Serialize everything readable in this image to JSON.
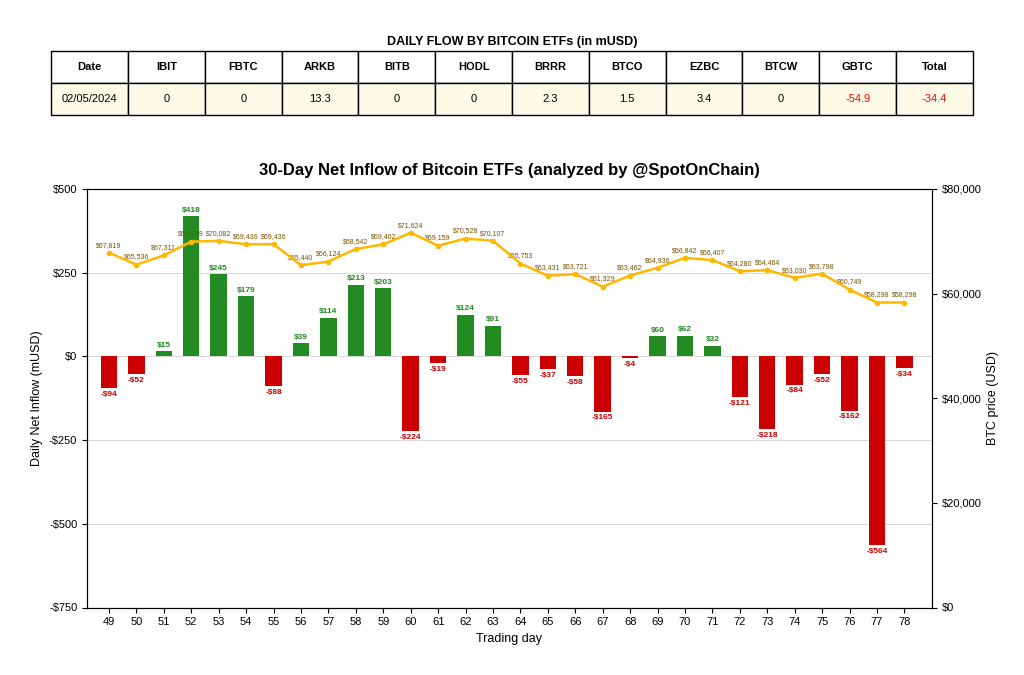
{
  "chart_data": {
    "type": "bar",
    "title": "30-Day Net Inflow of Bitcoin ETFs (analyzed by @SpotOnChain)",
    "x_label": "Trading day",
    "y_label": "Daily Net Inflow (mUSD)",
    "y2_label": "BTC price (USD)",
    "x": [
      49,
      50,
      51,
      52,
      53,
      54,
      55,
      56,
      57,
      58,
      59,
      60,
      61,
      62,
      63,
      64,
      65,
      66,
      67,
      68,
      69,
      70,
      71,
      72,
      73,
      74,
      75,
      76,
      77,
      78
    ],
    "xlim": [
      48.2,
      79
    ],
    "xticks": [
      49,
      50,
      51,
      52,
      53,
      54,
      55,
      56,
      57,
      58,
      59,
      60,
      61,
      62,
      63,
      64,
      65,
      66,
      67,
      68,
      69,
      70,
      71,
      72,
      73,
      74,
      75,
      76,
      77,
      78
    ],
    "ylim": [
      -750,
      500
    ],
    "yticks": [
      {
        "value": -750,
        "label": "-$750"
      },
      {
        "value": -500,
        "label": "-$500"
      },
      {
        "value": -250,
        "label": "-$250"
      },
      {
        "value": 0,
        "label": "$0"
      },
      {
        "value": 250,
        "label": "$250"
      },
      {
        "value": 500,
        "label": "$500"
      }
    ],
    "y2lim": [
      0,
      80000
    ],
    "y2ticks": [
      {
        "value": 0,
        "label": "$0"
      },
      {
        "value": 20000,
        "label": "$20,000"
      },
      {
        "value": 40000,
        "label": "$40,000"
      },
      {
        "value": 60000,
        "label": "$60,000"
      },
      {
        "value": 80000,
        "label": "$80,000"
      }
    ],
    "grid": "y",
    "data_labels": true,
    "series": [
      {
        "type": "bar",
        "values": [
          -94,
          -52,
          15,
          418,
          245,
          179,
          -88,
          39,
          114,
          213,
          203,
          -224,
          -19,
          124,
          91,
          -55,
          -37,
          -58,
          -165,
          -4,
          60,
          62,
          32,
          -121,
          -218,
          -84,
          -52,
          -162,
          -564,
          -34
        ],
        "value_labels": [
          "-$94",
          "-$52",
          "$15",
          "$418",
          "$245",
          "$179",
          "-$88",
          "$39",
          "$114",
          "$213",
          "$203",
          "-$224",
          "-$19",
          "$124",
          "$91",
          "-$55",
          "-$37",
          "-$58",
          "-$165",
          "-$4",
          "$60",
          "$62",
          "$32",
          "-$121",
          "-$218",
          "-$84",
          "-$52",
          "-$162",
          "-$564",
          "-$34"
        ],
        "colors": [
          "#CC0000",
          "#CC0000",
          "#228B22",
          "#228B22",
          "#228B22",
          "#228B22",
          "#CC0000",
          "#228B22",
          "#228B22",
          "#228B22",
          "#228B22",
          "#CC0000",
          "#CC0000",
          "#228B22",
          "#228B22",
          "#CC0000",
          "#CC0000",
          "#CC0000",
          "#CC0000",
          "#CC0000",
          "#228B22",
          "#228B22",
          "#228B22",
          "#CC0000",
          "#CC0000",
          "#CC0000",
          "#CC0000",
          "#CC0000",
          "#CC0000",
          "#CC0000"
        ]
      },
      {
        "type": "line",
        "axis": "y2",
        "color": "#FFB800",
        "marker": "o",
        "values": [
          67819,
          65536,
          67311,
          69939,
          70082,
          69436,
          69436,
          65440,
          66124,
          68542,
          69402,
          71624,
          69159,
          70528,
          70107,
          65753,
          63431,
          63721,
          61329,
          63462,
          64936,
          66842,
          66407,
          64280,
          64484,
          63030,
          63798,
          60749,
          58298,
          58298
        ],
        "value_labels": [
          "$67,819",
          "$65,536",
          "$67,311",
          "$69,939",
          "$70,082",
          "$69,436",
          "$69,436",
          "$65,440",
          "$66,124",
          "$68,542",
          "$69,402",
          "$71,624",
          "$69,159",
          "$70,528",
          "$70,107",
          "$65,753",
          "$63,431",
          "$63,721",
          "$61,329",
          "$63,462",
          "$64,936",
          "$66,842",
          "$66,407",
          "$64,280",
          "$64,484",
          "$63,030",
          "$63,798",
          "$60,749",
          "$58,298",
          "$58,298"
        ]
      }
    ],
    "table": {
      "title": "DAILY FLOW BY BITCOIN ETFs (in mUSD)",
      "headers": [
        "Date",
        "IBIT",
        "FBTC",
        "ARKB",
        "BITB",
        "HODL",
        "BRRR",
        "BTCO",
        "EZBC",
        "BTCW",
        "GBTC",
        "Total"
      ],
      "values": [
        "02/05/2024",
        "0",
        "0",
        "13.3",
        "0",
        "0",
        "2.3",
        "1.5",
        "3.4",
        "0",
        "-54.9",
        "-34.4"
      ],
      "colors": [
        "black",
        "black",
        "black",
        "black",
        "black",
        "black",
        "black",
        "black",
        "black",
        "black",
        "red",
        "red"
      ]
    }
  }
}
